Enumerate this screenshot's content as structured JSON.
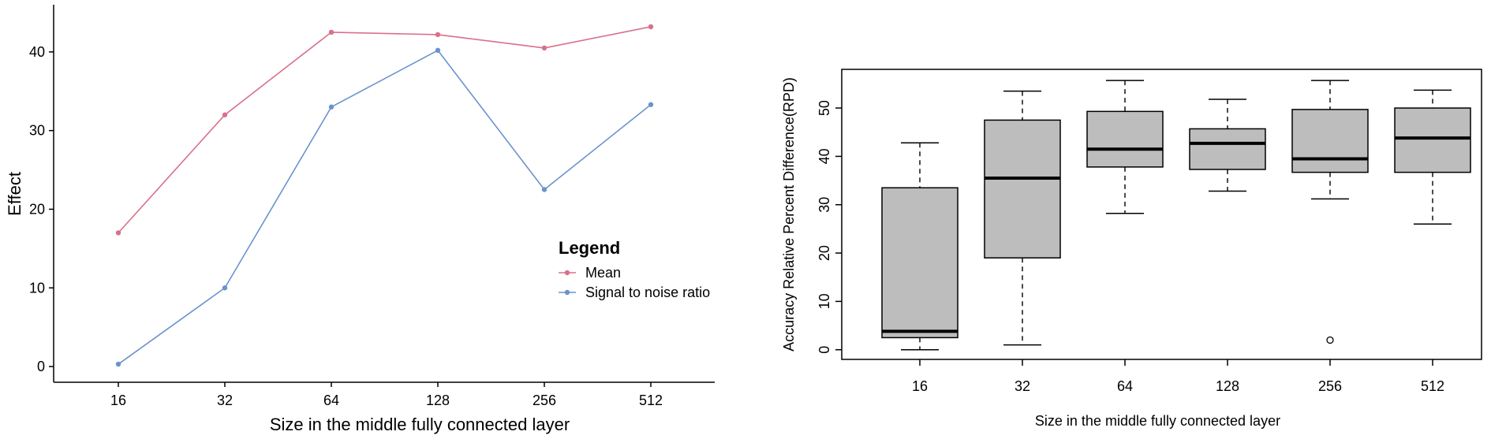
{
  "chart_data": [
    {
      "type": "line",
      "title": "",
      "xlabel": "Size in the middle fully connected layer",
      "ylabel": "Effect",
      "categories": [
        "16",
        "32",
        "64",
        "128",
        "256",
        "512"
      ],
      "ylim": [
        -2,
        46
      ],
      "yticks": [
        "0",
        "10",
        "20",
        "30",
        "40"
      ],
      "series": [
        {
          "name": "Mean",
          "color": "#d9708a",
          "values": [
            17,
            32,
            42.5,
            42.2,
            40.5,
            43.2
          ]
        },
        {
          "name": "Signal to noise ratio",
          "color": "#6b93cc",
          "values": [
            0.3,
            10,
            33,
            40.2,
            22.5,
            33.3
          ]
        }
      ],
      "legend": {
        "title": "Legend",
        "placement": "center-right"
      },
      "grid": false
    },
    {
      "type": "box",
      "title": "",
      "xlabel": "Size in the middle fully connected layer",
      "ylabel": "Accuracy Relative Percent Difference(RPD)",
      "categories": [
        "16",
        "32",
        "64",
        "128",
        "256",
        "512"
      ],
      "ylim": [
        -2,
        58
      ],
      "yticks": [
        "0",
        "10",
        "20",
        "30",
        "40",
        "50"
      ],
      "fill_color": "#bdbdbd",
      "boxes": [
        {
          "whisker_low": 0,
          "q1": 2.5,
          "median": 3.8,
          "q3": 33.5,
          "whisker_high": 42.8,
          "outliers": []
        },
        {
          "whisker_low": 1,
          "q1": 19,
          "median": 35.5,
          "q3": 47.5,
          "whisker_high": 53.5,
          "outliers": []
        },
        {
          "whisker_low": 28.2,
          "q1": 37.8,
          "median": 41.5,
          "q3": 49.3,
          "whisker_high": 55.7,
          "outliers": []
        },
        {
          "whisker_low": 32.8,
          "q1": 37.3,
          "median": 42.7,
          "q3": 45.7,
          "whisker_high": 51.8,
          "outliers": []
        },
        {
          "whisker_low": 31.2,
          "q1": 36.7,
          "median": 39.5,
          "q3": 49.7,
          "whisker_high": 55.7,
          "outliers": [
            2
          ]
        },
        {
          "whisker_low": 26,
          "q1": 36.7,
          "median": 43.8,
          "q3": 50,
          "whisker_high": 53.7,
          "outliers": []
        }
      ],
      "grid": false
    }
  ]
}
